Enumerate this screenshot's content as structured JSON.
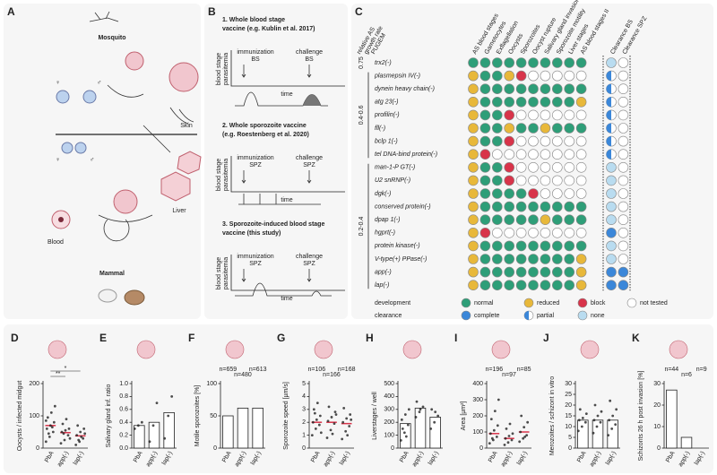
{
  "panel_a": {
    "label": "A",
    "mosquito": "Mosquito",
    "skin": "Skin",
    "liver": "Liver",
    "blood": "Blood",
    "mammal": "Mammal",
    "female": "♀",
    "male": "♂"
  },
  "panel_b": {
    "label": "B",
    "y_label": [
      "blood stage",
      "parasitemia"
    ],
    "x_label": "time",
    "schemes": [
      {
        "title": [
          "1. Whole blood stage",
          "vaccine (e.g. Kublin et al. 2017)"
        ],
        "immunization": [
          "immunization",
          "BS"
        ],
        "challenge": [
          "challenge",
          "BS"
        ]
      },
      {
        "title": [
          "2. Whole sporozoite vaccine",
          "(e.g. Roestenberg et al. 2020)"
        ],
        "immunization": [
          "immunization",
          "SPZ"
        ],
        "challenge": [
          "challenge",
          "SPZ"
        ]
      },
      {
        "title": [
          "3. Sporozoite-induced blood stage",
          "vaccine (this study)"
        ],
        "immunization": [
          "immunization",
          "SPZ"
        ],
        "challenge": [
          "challenge",
          "SPZ"
        ]
      }
    ]
  },
  "panel_c": {
    "label": "C",
    "row_header": [
      "relative AS",
      "growth rate",
      "PUGEM"
    ],
    "columns": [
      "AS blood stages",
      "Gametocytes",
      "Exflagellation",
      "Oocysts",
      "Sporozoites",
      "Oocyst rupture",
      "Salivary gland invasion",
      "Sporozoite motility",
      "Liver stages",
      "AS blood stages II"
    ],
    "clearance_columns": [
      "Clearance BS",
      "Clearance SPZ"
    ],
    "groups": [
      {
        "label": "0.75",
        "genes": [
          {
            "name": "trx2(-)",
            "development": [
              "n",
              "n",
              "n",
              "n",
              "n",
              "n",
              "n",
              "n",
              "n",
              "n"
            ],
            "clearance": [
              "x",
              "t"
            ]
          }
        ]
      },
      {
        "label": "0.4-0.6",
        "genes": [
          {
            "name": "plasmepsin IV(-)",
            "development": [
              "r",
              "n",
              "n",
              "r",
              "b",
              "t",
              "t",
              "t",
              "t",
              "t"
            ],
            "clearance": [
              "p",
              "t"
            ]
          },
          {
            "name": "dynein heavy chain(-)",
            "development": [
              "r",
              "n",
              "n",
              "n",
              "n",
              "n",
              "n",
              "n",
              "n",
              "n"
            ],
            "clearance": [
              "p",
              "t"
            ]
          },
          {
            "name": "atg 23(-)",
            "development": [
              "r",
              "n",
              "n",
              "n",
              "n",
              "n",
              "n",
              "n",
              "n",
              "r"
            ],
            "clearance": [
              "p",
              "t"
            ]
          },
          {
            "name": "profilin(-)",
            "development": [
              "r",
              "n",
              "n",
              "b",
              "t",
              "t",
              "t",
              "t",
              "t",
              "t"
            ],
            "clearance": [
              "p",
              "t"
            ]
          },
          {
            "name": "fll(-)",
            "development": [
              "r",
              "n",
              "n",
              "r",
              "n",
              "n",
              "r",
              "n",
              "n",
              "n"
            ],
            "clearance": [
              "p",
              "t"
            ]
          },
          {
            "name": "bclp 1(-)",
            "development": [
              "r",
              "n",
              "n",
              "b",
              "t",
              "t",
              "t",
              "t",
              "t",
              "t"
            ],
            "clearance": [
              "p",
              "t"
            ]
          },
          {
            "name": "tel DNA-bind protein(-)",
            "development": [
              "r",
              "b",
              "t",
              "t",
              "t",
              "t",
              "t",
              "t",
              "t",
              "t"
            ],
            "clearance": [
              "p",
              "t"
            ]
          }
        ]
      },
      {
        "label": "0.2-0.4",
        "genes": [
          {
            "name": "man-1-P GT(-)",
            "development": [
              "r",
              "n",
              "n",
              "b",
              "t",
              "t",
              "t",
              "t",
              "t",
              "t"
            ],
            "clearance": [
              "x",
              "t"
            ]
          },
          {
            "name": "U2 snRNP(-)",
            "development": [
              "r",
              "n",
              "n",
              "b",
              "t",
              "t",
              "t",
              "t",
              "t",
              "t"
            ],
            "clearance": [
              "x",
              "t"
            ]
          },
          {
            "name": "dgk(-)",
            "development": [
              "r",
              "n",
              "n",
              "n",
              "n",
              "b",
              "t",
              "t",
              "t",
              "t"
            ],
            "clearance": [
              "x",
              "t"
            ]
          },
          {
            "name": "conserved protein(-)",
            "development": [
              "r",
              "n",
              "n",
              "n",
              "n",
              "n",
              "n",
              "n",
              "n",
              "n"
            ],
            "clearance": [
              "x",
              "t"
            ]
          },
          {
            "name": "dpap 1(-)",
            "development": [
              "r",
              "n",
              "n",
              "n",
              "n",
              "n",
              "r",
              "n",
              "n",
              "n"
            ],
            "clearance": [
              "x",
              "t"
            ]
          },
          {
            "name": "hgprt(-)",
            "development": [
              "r",
              "b",
              "t",
              "t",
              "t",
              "t",
              "t",
              "t",
              "t",
              "t"
            ],
            "clearance": [
              "c",
              "t"
            ]
          },
          {
            "name": "protein kinase(-)",
            "development": [
              "r",
              "n",
              "n",
              "n",
              "n",
              "n",
              "n",
              "n",
              "n",
              "n"
            ],
            "clearance": [
              "x",
              "t"
            ]
          },
          {
            "name": "V-type(+) PPase(-)",
            "development": [
              "r",
              "n",
              "n",
              "n",
              "n",
              "n",
              "n",
              "n",
              "n",
              "r"
            ],
            "clearance": [
              "x",
              "t"
            ]
          },
          {
            "name": "app(-)",
            "development": [
              "r",
              "n",
              "n",
              "n",
              "n",
              "n",
              "n",
              "n",
              "n",
              "r"
            ],
            "clearance": [
              "c",
              "c"
            ]
          },
          {
            "name": "lap(-)",
            "development": [
              "r",
              "n",
              "n",
              "n",
              "n",
              "n",
              "n",
              "n",
              "n",
              "r"
            ],
            "clearance": [
              "c",
              "c"
            ]
          }
        ]
      }
    ],
    "legend": {
      "development_title": "development",
      "clearance_title": "clearance",
      "development": [
        {
          "code": "n",
          "label": "normal",
          "color": "#2e9e78"
        },
        {
          "code": "r",
          "label": "reduced",
          "color": "#e8b83a"
        },
        {
          "code": "b",
          "label": "block",
          "color": "#d8344a"
        },
        {
          "code": "t",
          "label": "not tested",
          "color": "#ffffff"
        }
      ],
      "clearance": [
        {
          "code": "c",
          "label": "complete",
          "color": "#3b87d9"
        },
        {
          "code": "p",
          "label": "partial",
          "color": "#3b87d9"
        },
        {
          "code": "x",
          "label": "none",
          "color": "#b9dcf0"
        }
      ]
    }
  },
  "chart_data": [
    {
      "type": "scatter",
      "label": "D",
      "y_label": "Oocysts / infected midgut",
      "categories": [
        "PbA",
        "app(-)",
        "lap(-)"
      ],
      "values": [
        70,
        48,
        38
      ],
      "mean_color": "#d8334a",
      "color": "#222222",
      "points": [
        [
          20,
          35,
          50,
          60,
          70,
          80,
          95,
          110,
          130,
          45,
          65,
          85
        ],
        [
          15,
          25,
          40,
          50,
          55,
          60,
          75,
          90,
          30,
          45
        ],
        [
          10,
          20,
          30,
          40,
          50,
          60,
          70,
          35,
          45,
          25
        ]
      ],
      "ylim": [
        0,
        200
      ],
      "yticks": [
        0,
        100,
        200
      ],
      "annotations": [
        "**",
        "*"
      ]
    },
    {
      "type": "bar",
      "label": "E",
      "y_label": "Salivary gland inf. ratio",
      "categories": [
        "PbA",
        "app(-)",
        "lap(-)"
      ],
      "values": [
        0.35,
        0.4,
        0.55
      ],
      "color": "#ffffff",
      "points": [
        [
          0.3,
          0.35,
          0.4
        ],
        [
          0.1,
          0.35,
          0.7
        ],
        [
          0.15,
          0.5,
          0.8
        ]
      ],
      "ylim": [
        0,
        1
      ],
      "yticks": [
        {
          "value": 0,
          "label": "0.0"
        },
        0.2,
        0.4,
        0.6,
        0.8,
        {
          "value": 1,
          "label": "1.0"
        }
      ]
    },
    {
      "type": "bar",
      "label": "F",
      "y_label": "Motile sporozoites [%]",
      "categories": [
        "PbA",
        "app(-)",
        "lap(-)"
      ],
      "values": [
        50,
        62,
        62
      ],
      "color": "#ffffff",
      "n_labels": [
        "n=659",
        "n=480",
        "n=613"
      ],
      "ylim": [
        0,
        100
      ],
      "yticks": [
        0,
        50,
        100
      ]
    },
    {
      "type": "scatter",
      "label": "G",
      "y_label": "Sporozoite speed [µm/s]",
      "categories": [
        "PbA",
        "app(-)",
        "lap(-)"
      ],
      "values": [
        2,
        2,
        1.9
      ],
      "mean_color": "#d8334a",
      "color": "#222222",
      "points": [
        [
          1,
          1.5,
          1.8,
          2,
          2.2,
          2.5,
          3,
          3.5,
          1.2,
          2.7
        ],
        [
          0.8,
          1.4,
          1.9,
          2.1,
          2.4,
          2.8,
          3.2,
          1.1,
          2.6
        ],
        [
          0.7,
          1.3,
          1.7,
          2,
          2.3,
          2.6,
          3.1,
          1,
          2.2
        ]
      ],
      "n_labels": [
        "n=106",
        "n=166",
        "n=168"
      ],
      "ylim": [
        0,
        5
      ],
      "yticks": [
        0,
        1,
        2,
        3,
        4,
        5
      ]
    },
    {
      "type": "bar",
      "label": "H",
      "y_label": "Liverstages / well",
      "categories": [
        "PbA",
        "app(-)",
        "lap(-)"
      ],
      "values": [
        190,
        310,
        240
      ],
      "color": "#ffffff",
      "points": [
        [
          60,
          120,
          180,
          220,
          260,
          300,
          150,
          90
        ],
        [
          240,
          280,
          320,
          360,
          300
        ],
        [
          150,
          200,
          250,
          300,
          280
        ]
      ],
      "ylim": [
        0,
        500
      ],
      "yticks": [
        0,
        100,
        200,
        300,
        400,
        500
      ]
    },
    {
      "type": "scatter",
      "label": "I",
      "y_label": "Area [µm²]",
      "categories": [
        "PbA",
        "app(-)",
        "lap(-)"
      ],
      "values": [
        90,
        60,
        100
      ],
      "mean_color": "#d8334a",
      "color": "#222222",
      "points": [
        [
          30,
          50,
          70,
          90,
          110,
          140,
          180,
          230,
          300,
          60
        ],
        [
          20,
          35,
          50,
          60,
          75,
          90,
          120,
          150
        ],
        [
          40,
          60,
          80,
          100,
          130,
          160,
          200,
          70
        ]
      ],
      "n_labels": [
        "n=196",
        "n=97",
        "n=85"
      ],
      "ylim": [
        0,
        400
      ],
      "yticks": [
        0,
        100,
        200,
        300,
        400
      ]
    },
    {
      "type": "bar",
      "label": "J",
      "y_label": "Merozoites / schizont in vitro",
      "categories": [
        "PbA",
        "app(-)",
        "lap(-)"
      ],
      "values": [
        13,
        13,
        13
      ],
      "color": "#ffffff",
      "points": [
        [
          8,
          10,
          12,
          13,
          14,
          16,
          18
        ],
        [
          7,
          10,
          12,
          13,
          15,
          17,
          20
        ],
        [
          6,
          9,
          11,
          13,
          15,
          18,
          22
        ]
      ],
      "ylim": [
        0,
        30
      ],
      "yticks": [
        0,
        5,
        10,
        15,
        20,
        25,
        30
      ]
    },
    {
      "type": "bar",
      "label": "K",
      "y_label": "Schizonts 26 h post invasion [%]",
      "categories": [
        "PbA",
        "app(-)",
        "lap(-)"
      ],
      "values": [
        27,
        5,
        0
      ],
      "color": "#ffffff",
      "n_labels": [
        "n=44",
        "n=6",
        "n=9"
      ],
      "ylim": [
        0,
        30
      ],
      "yticks": [
        0,
        10,
        20,
        30
      ]
    }
  ]
}
